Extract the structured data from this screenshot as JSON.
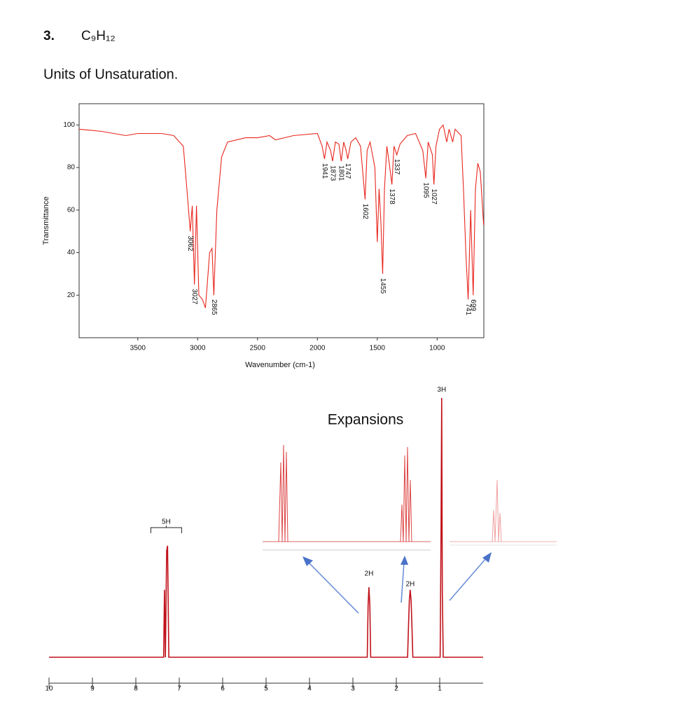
{
  "header": {
    "number": "3.",
    "formula": "C₉H₁₂",
    "prompt": "Units of Unsaturation."
  },
  "chart_data": [
    {
      "type": "line",
      "color": "#e8271e",
      "xlabel": "Wavenumber (cm-1)",
      "ylabel": "Transmittance",
      "xlim": [
        3990,
        610
      ],
      "ylim": [
        0,
        110
      ],
      "xticks": [
        3500,
        3000,
        2500,
        2000,
        1500,
        1000
      ],
      "yticks": [
        20,
        40,
        60,
        80,
        100
      ],
      "x": [
        3990,
        3800,
        3600,
        3500,
        3300,
        3200,
        3120,
        3090,
        3062,
        3045,
        3027,
        3010,
        2990,
        2960,
        2935,
        2900,
        2880,
        2865,
        2840,
        2800,
        2750,
        2600,
        2500,
        2400,
        2350,
        2200,
        2000,
        1960,
        1941,
        1920,
        1890,
        1873,
        1850,
        1820,
        1801,
        1780,
        1760,
        1747,
        1720,
        1680,
        1640,
        1602,
        1585,
        1560,
        1520,
        1500,
        1485,
        1470,
        1455,
        1440,
        1420,
        1400,
        1378,
        1360,
        1337,
        1310,
        1250,
        1180,
        1120,
        1095,
        1075,
        1040,
        1027,
        1010,
        980,
        950,
        920,
        900,
        870,
        850,
        800,
        780,
        760,
        741,
        720,
        699,
        680,
        660,
        640,
        612
      ],
      "values": [
        98,
        97,
        95,
        96,
        96,
        95,
        90,
        70,
        50,
        62,
        25,
        62,
        20,
        18,
        14,
        40,
        42,
        20,
        60,
        85,
        92,
        94,
        94,
        95,
        93,
        95,
        96,
        90,
        84,
        92,
        88,
        83,
        92,
        91,
        83,
        92,
        88,
        84,
        92,
        94,
        90,
        65,
        88,
        92,
        80,
        45,
        70,
        55,
        30,
        70,
        90,
        82,
        72,
        90,
        86,
        91,
        95,
        96,
        88,
        75,
        92,
        86,
        72,
        90,
        98,
        100,
        92,
        98,
        92,
        98,
        95,
        70,
        40,
        18,
        60,
        20,
        70,
        82,
        78,
        53
      ],
      "peak_labels": [
        3062,
        3027,
        2865,
        1941,
        1873,
        1801,
        1747,
        1602,
        1455,
        1378,
        1337,
        1095,
        1027,
        699,
        741
      ]
    },
    {
      "type": "line",
      "color": "#c0121a",
      "expansions_title": "Expansions",
      "xlim": [
        10,
        0
      ],
      "ylim": [
        0,
        100
      ],
      "xticks": [
        10,
        9,
        8,
        7,
        6,
        5,
        4,
        3,
        2,
        1
      ],
      "x": [
        10,
        7.36,
        7.34,
        7.32,
        7.29,
        7.27,
        7.24,
        2.67,
        2.65,
        2.63,
        2.61,
        2.59,
        1.74,
        1.72,
        1.7,
        1.68,
        1.66,
        1.64,
        1.62,
        0.99,
        0.97,
        0.955,
        0.94,
        0.92,
        0
      ],
      "values": [
        0,
        0,
        26,
        0,
        41,
        43,
        0,
        0,
        20,
        27,
        20,
        0,
        0,
        12,
        22,
        26,
        22,
        12,
        0,
        0,
        50,
        100,
        25,
        0,
        0
      ],
      "annotations": [
        {
          "text": "5H",
          "x": 7.3,
          "y": 50
        },
        {
          "text": "2H",
          "x": 2.63,
          "y": 30
        },
        {
          "text": "2H",
          "x": 1.68,
          "y": 26
        },
        {
          "text": "3H",
          "x": 0.955,
          "y": 101
        }
      ]
    }
  ]
}
